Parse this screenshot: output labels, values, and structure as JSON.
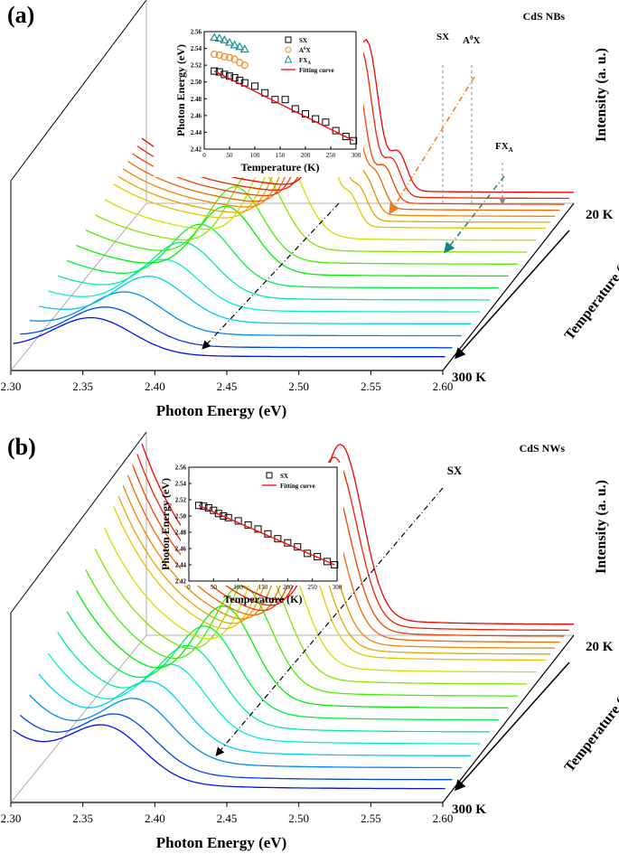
{
  "chart_data": [
    {
      "panel_label": "(a)",
      "type": "line",
      "sample_label": "CdS NBs",
      "xlabel": "Photon Energy (eV)",
      "ylabel": "Intensity (a. u.)",
      "zlabel": "Temperature (K)",
      "z_ticks": [
        "20 K",
        "300 K"
      ],
      "x_ticks": [
        "2.30",
        "2.35",
        "2.40",
        "2.45",
        "2.50",
        "2.55",
        "2.60"
      ],
      "xlim": [
        2.3,
        2.6
      ],
      "peak_labels": [
        "SX",
        "A0X",
        "FXA"
      ],
      "peak_labels_display": {
        "sx": "SX",
        "a0x_base": "A",
        "a0x_sup": "0",
        "a0x_tail": "X",
        "fx_base": "FX",
        "fx_sub": "A"
      },
      "inset": {
        "type": "scatter",
        "xlabel": "Temperature (K)",
        "ylabel": "Photon Energy (eV)",
        "xlim": [
          0,
          300
        ],
        "ylim": [
          2.42,
          2.56
        ],
        "x_ticks": [
          "0",
          "50",
          "100",
          "150",
          "200",
          "250",
          "300"
        ],
        "y_ticks": [
          "2.42",
          "2.44",
          "2.46",
          "2.48",
          "2.50",
          "2.52",
          "2.54",
          "2.56"
        ],
        "legend_position": "top-right",
        "series": [
          {
            "name": "SX",
            "marker": "square",
            "color": "#000000",
            "x": [
              20,
              30,
              40,
              50,
              60,
              70,
              80,
              100,
              120,
              140,
              160,
              180,
              200,
              220,
              240,
              260,
              280,
              295
            ],
            "y": [
              2.513,
              2.512,
              2.509,
              2.507,
              2.505,
              2.502,
              2.499,
              2.495,
              2.487,
              2.479,
              2.479,
              2.468,
              2.462,
              2.456,
              2.452,
              2.442,
              2.435,
              2.43
            ]
          },
          {
            "name": "A0X",
            "legend_base": "A",
            "legend_sup": "0",
            "legend_tail": "X",
            "marker": "circle",
            "color": "#f08c28",
            "x": [
              20,
              30,
              40,
              50,
              60,
              70,
              80
            ],
            "y": [
              2.533,
              2.532,
              2.53,
              2.529,
              2.527,
              2.523,
              2.52
            ]
          },
          {
            "name": "FXA",
            "legend_base": "FX",
            "legend_sub": "A",
            "marker": "triangle",
            "color": "#1a8c8c",
            "x": [
              20,
              30,
              40,
              50,
              60,
              70,
              80
            ],
            "y": [
              2.553,
              2.552,
              2.55,
              2.547,
              2.544,
              2.542,
              2.539
            ]
          },
          {
            "name": "Fitting curve",
            "type": "line",
            "color": "#ff0000",
            "x": [
              20,
              295
            ],
            "y": [
              2.513,
              2.43
            ]
          }
        ]
      }
    },
    {
      "panel_label": "(b)",
      "type": "line",
      "sample_label": "CdS NWs",
      "xlabel": "Photon Energy (eV)",
      "ylabel": "Intensity (a. u.)",
      "zlabel": "Temperature (K)",
      "z_ticks": [
        "20 K",
        "300 K"
      ],
      "x_ticks": [
        "2.30",
        "2.35",
        "2.40",
        "2.45",
        "2.50",
        "2.55",
        "2.60"
      ],
      "xlim": [
        2.3,
        2.6
      ],
      "peak_labels": [
        "SX"
      ],
      "inset": {
        "type": "scatter",
        "xlabel": "Temperature (K)",
        "ylabel": "Photon Energy (eV)",
        "xlim": [
          0,
          300
        ],
        "ylim": [
          2.42,
          2.56
        ],
        "x_ticks": [
          "0",
          "50",
          "100",
          "150",
          "200",
          "250",
          "300"
        ],
        "y_ticks": [
          "2.42",
          "2.44",
          "2.46",
          "2.48",
          "2.50",
          "2.52",
          "2.54",
          "2.56"
        ],
        "legend_position": "top-right",
        "series": [
          {
            "name": "SX",
            "marker": "square",
            "color": "#000000",
            "x": [
              20,
              30,
              40,
              50,
              60,
              70,
              80,
              100,
              120,
              140,
              160,
              180,
              200,
              220,
              240,
              260,
              280,
              295
            ],
            "y": [
              2.513,
              2.512,
              2.51,
              2.507,
              2.503,
              2.5,
              2.498,
              2.494,
              2.489,
              2.484,
              2.478,
              2.472,
              2.467,
              2.462,
              2.454,
              2.45,
              2.444,
              2.44
            ]
          },
          {
            "name": "Fitting curve",
            "type": "line",
            "color": "#ff0000",
            "x": [
              20,
              295
            ],
            "y": [
              2.513,
              2.44
            ]
          }
        ]
      }
    }
  ]
}
